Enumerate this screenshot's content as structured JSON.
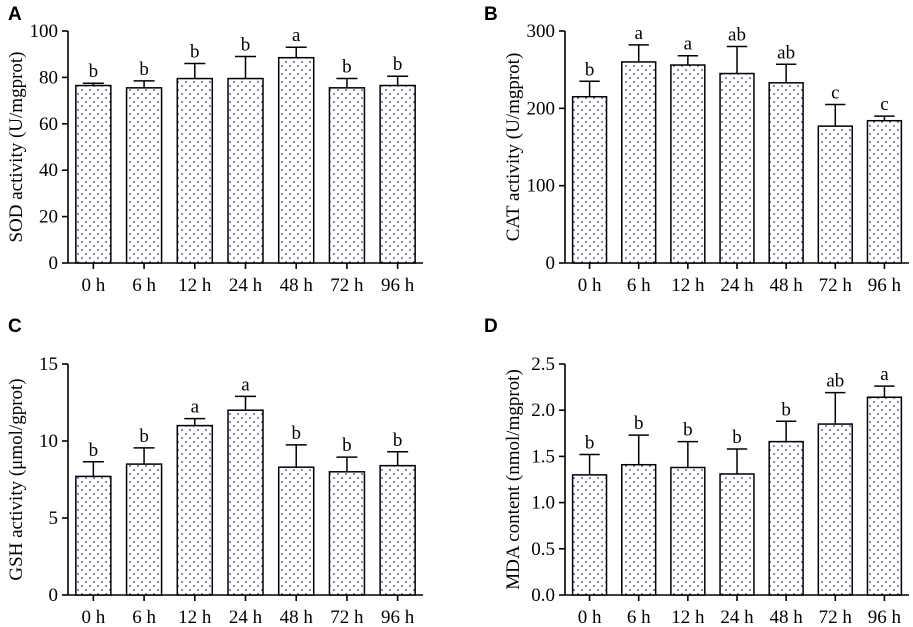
{
  "chart_data": [
    {
      "panel": "A",
      "type": "bar",
      "ylabel": "SOD activity (U/mgprot)",
      "xlabel": "",
      "categories": [
        "0 h",
        "6 h",
        "12 h",
        "24 h",
        "48 h",
        "72 h",
        "96 h"
      ],
      "values": [
        76.5,
        75.5,
        79.5,
        79.5,
        88.5,
        75.5,
        76.5
      ],
      "errors": [
        1.0,
        3.0,
        6.5,
        9.5,
        4.5,
        4.0,
        4.0
      ],
      "significance": [
        "b",
        "b",
        "b",
        "b",
        "a",
        "b",
        "b"
      ],
      "ylim": [
        0,
        100
      ],
      "yticks": [
        0,
        20,
        40,
        60,
        80,
        100
      ]
    },
    {
      "panel": "B",
      "type": "bar",
      "ylabel": "CAT activity (U/mgprot)",
      "xlabel": "",
      "categories": [
        "0 h",
        "6 h",
        "12 h",
        "24 h",
        "48 h",
        "72 h",
        "96 h"
      ],
      "values": [
        215,
        260,
        256,
        245,
        233,
        177,
        184
      ],
      "errors": [
        20,
        22,
        12,
        35,
        24,
        28,
        6
      ],
      "significance": [
        "b",
        "a",
        "a",
        "ab",
        "ab",
        "c",
        "c"
      ],
      "ylim": [
        0,
        300
      ],
      "yticks": [
        0,
        100,
        200,
        300
      ]
    },
    {
      "panel": "C",
      "type": "bar",
      "ylabel": "GSH activity (μmol/gprot)",
      "xlabel": "",
      "categories": [
        "0 h",
        "6 h",
        "12 h",
        "24 h",
        "48 h",
        "72 h",
        "96 h"
      ],
      "values": [
        7.7,
        8.5,
        11.0,
        12.0,
        8.3,
        8.0,
        8.4
      ],
      "errors": [
        0.95,
        1.05,
        0.45,
        0.9,
        1.45,
        0.95,
        0.9
      ],
      "significance": [
        "b",
        "b",
        "a",
        "a",
        "b",
        "b",
        "b"
      ],
      "ylim": [
        0,
        15
      ],
      "yticks": [
        0,
        5,
        10,
        15
      ]
    },
    {
      "panel": "D",
      "type": "bar",
      "ylabel": "MDA content (nmol/mgprot)",
      "xlabel": "",
      "categories": [
        "0 h",
        "6 h",
        "12 h",
        "24 h",
        "48 h",
        "72 h",
        "96 h"
      ],
      "values": [
        1.3,
        1.41,
        1.38,
        1.31,
        1.66,
        1.85,
        2.14
      ],
      "errors": [
        0.22,
        0.32,
        0.28,
        0.27,
        0.22,
        0.34,
        0.12
      ],
      "significance": [
        "b",
        "b",
        "b",
        "b",
        "b",
        "ab",
        "a"
      ],
      "ylim": [
        0,
        2.5
      ],
      "yticks": [
        "0.0",
        "0.5",
        "1.0",
        "1.5",
        "2.0",
        "2.5"
      ]
    }
  ]
}
